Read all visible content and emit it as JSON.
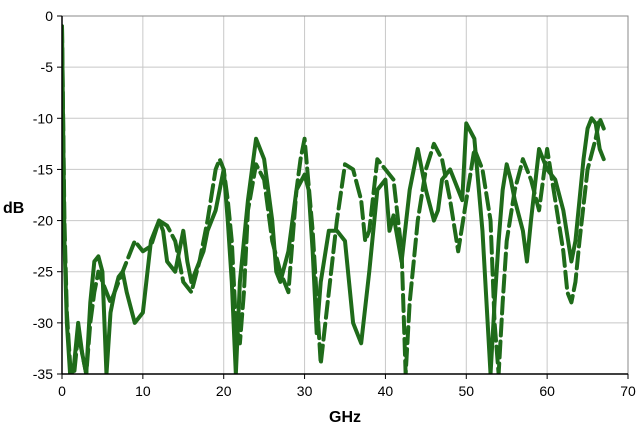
{
  "chart_data": {
    "type": "line",
    "title": "",
    "xlabel": "GHz",
    "ylabel": "dB",
    "xlim": [
      0,
      70
    ],
    "ylim": [
      -35,
      0
    ],
    "x_ticks": [
      0,
      10,
      20,
      30,
      40,
      50,
      60,
      70
    ],
    "x_tick_labels": [
      "0",
      "10",
      "20",
      "30",
      "40",
      "50",
      "60",
      "70"
    ],
    "y_ticks": [
      0,
      -5,
      -10,
      -15,
      -20,
      -25,
      -30,
      -35
    ],
    "y_tick_labels": [
      "0",
      "-5",
      "-10",
      "-15",
      "-20",
      "-25",
      "-30",
      "-35"
    ],
    "grid": true,
    "legend": "none",
    "colors": {
      "series": "#1f6b1a",
      "grid": "#c8c8c8",
      "axis": "#000000"
    },
    "series": [
      {
        "style": "solid",
        "x": [
          0,
          0.3,
          0.6,
          1,
          1.5,
          2,
          2.5,
          3,
          3.5,
          4,
          4.5,
          5,
          5.5,
          6,
          6.5,
          7,
          7.5,
          8,
          9,
          10,
          11,
          12,
          12.5,
          13,
          14,
          14.5,
          15,
          15.5,
          16,
          17,
          17.5,
          18,
          19,
          20,
          20.5,
          21,
          21.5,
          22,
          23,
          24,
          25,
          26,
          26.5,
          27,
          28,
          29,
          30,
          30.5,
          31,
          31.5,
          32,
          33,
          34,
          35,
          36,
          37,
          38,
          39,
          40,
          40.5,
          41,
          42,
          43,
          44,
          45,
          46,
          46.5,
          47,
          48,
          49,
          49.5,
          50,
          51,
          52,
          53,
          53.5,
          54,
          54.5,
          55,
          55.5,
          56,
          57,
          57.5,
          58,
          59,
          60,
          61,
          62,
          63,
          63.5,
          64,
          64.5,
          65,
          65.5,
          66,
          66.5,
          67
        ],
        "y": [
          -1,
          -22,
          -30,
          -35,
          -34,
          -30,
          -33,
          -35,
          -28,
          -24,
          -23.5,
          -25,
          -35,
          -29,
          -27,
          -25.5,
          -25,
          -27,
          -30,
          -29,
          -22,
          -20,
          -21,
          -24,
          -25,
          -23,
          -21,
          -24,
          -26,
          -24,
          -23,
          -21,
          -19,
          -15,
          -20,
          -26,
          -35,
          -26,
          -18,
          -12,
          -14,
          -20,
          -25,
          -26,
          -23,
          -17,
          -15.5,
          -17,
          -23,
          -31,
          -26,
          -21,
          -21,
          -22,
          -30,
          -32,
          -25,
          -17,
          -16,
          -21,
          -19.5,
          -24,
          -17,
          -13,
          -17,
          -20,
          -19,
          -16,
          -15,
          -17,
          -18,
          -10.5,
          -12,
          -21,
          -35,
          -28,
          -22,
          -17,
          -14.5,
          -16,
          -18,
          -21,
          -24,
          -20,
          -13,
          -15,
          -16,
          -19,
          -24,
          -22,
          -18,
          -14,
          -11,
          -10,
          -10.5,
          -13,
          -14
        ]
      },
      {
        "style": "dashed",
        "x": [
          0,
          0.3,
          0.6,
          1,
          1.5,
          2,
          2.5,
          3,
          3.5,
          4,
          4.5,
          5,
          6,
          7,
          8,
          9,
          10,
          11,
          12,
          13,
          14,
          15,
          16,
          17,
          18,
          19,
          19.5,
          20,
          20.5,
          21,
          21.5,
          22,
          22.5,
          23,
          24,
          25,
          26,
          27,
          28,
          29,
          29.5,
          30,
          31,
          32,
          33,
          34,
          35,
          36,
          37,
          37.5,
          38,
          39,
          40,
          41,
          42,
          42.5,
          43,
          44,
          45,
          46,
          47,
          48,
          49,
          50,
          51,
          52,
          53,
          53.5,
          54,
          54.5,
          55,
          56,
          57,
          58,
          59,
          60,
          61,
          62,
          62.5,
          63,
          63.5,
          64,
          65,
          66,
          66.5,
          67
        ],
        "y": [
          -1,
          -20,
          -29,
          -34,
          -35,
          -31,
          -33,
          -35,
          -30,
          -27,
          -25,
          -26,
          -28,
          -26,
          -24,
          -22,
          -23,
          -22.5,
          -20,
          -20.5,
          -22,
          -26,
          -27,
          -24,
          -20,
          -15,
          -14,
          -15,
          -18,
          -22,
          -30,
          -32,
          -27,
          -19,
          -14.5,
          -16,
          -22,
          -25,
          -27,
          -17,
          -14,
          -12,
          -21,
          -34,
          -27,
          -20,
          -14.5,
          -15,
          -18,
          -22,
          -21,
          -14,
          -15,
          -16,
          -23,
          -35,
          -28,
          -20,
          -15,
          -12.5,
          -14,
          -18,
          -23,
          -18,
          -13,
          -15,
          -20,
          -30,
          -35,
          -28,
          -22,
          -17,
          -14,
          -16,
          -19,
          -13,
          -18,
          -23,
          -27,
          -28,
          -26,
          -22,
          -15,
          -12,
          -10,
          -11
        ]
      }
    ]
  }
}
